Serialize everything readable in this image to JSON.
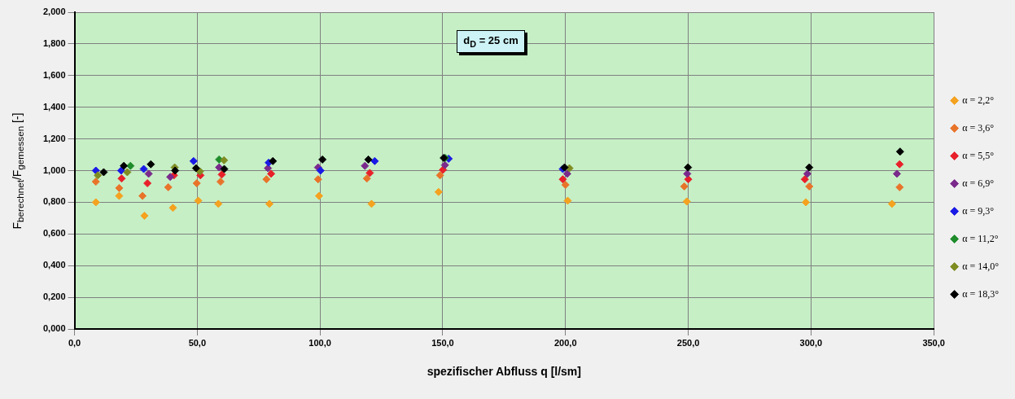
{
  "chart_data": {
    "type": "scatter",
    "xlabel": "spezifischer Abfluss q [l/sm]",
    "ylabel": "F$_{berechnet}$/F$_{gemessen}$ [-]",
    "annotations": [
      "d$_{D}$ = 25 cm"
    ],
    "xlim": [
      0,
      350
    ],
    "xticks": [
      {
        "value": 0,
        "label": "0,0"
      },
      {
        "value": 50,
        "label": "50,0"
      },
      {
        "value": 100,
        "label": "100,0"
      },
      {
        "value": 150,
        "label": "150,0"
      },
      {
        "value": 200,
        "label": "200,0"
      },
      {
        "value": 250,
        "label": "250,0"
      },
      {
        "value": 300,
        "label": "300,0"
      },
      {
        "value": 350,
        "label": "350,0"
      }
    ],
    "ylim": [
      0,
      2
    ],
    "yticks": [
      {
        "value": 0,
        "label": "0,000"
      },
      {
        "value": 0.2,
        "label": "0,200"
      },
      {
        "value": 0.4,
        "label": "0,400"
      },
      {
        "value": 0.6,
        "label": "0,600"
      },
      {
        "value": 0.8,
        "label": "0,800"
      },
      {
        "value": 1,
        "label": "1,000"
      },
      {
        "value": 1.2,
        "label": "1,200"
      },
      {
        "value": 1.4,
        "label": "1,400"
      },
      {
        "value": 1.6,
        "label": "1,600"
      },
      {
        "value": 1.8,
        "label": "1,800"
      },
      {
        "value": 2,
        "label": "2,000"
      }
    ],
    "grid": true,
    "legend": "right",
    "marker": "diamond",
    "series": [
      {
        "name": "α = 2,2°",
        "color": "#f4a21f",
        "x": [
          8.7,
          18.2,
          28.5,
          40.1,
          50.4,
          58.6,
          79.4,
          99.6,
          121,
          148.3,
          200.9,
          249.4,
          297.9,
          333
        ],
        "values": [
          0.8,
          0.84,
          0.715,
          0.765,
          0.81,
          0.79,
          0.79,
          0.84,
          0.79,
          0.865,
          0.81,
          0.805,
          0.8,
          0.79
        ]
      },
      {
        "name": "α = 3,6°",
        "color": "#e8742a",
        "x": [
          8.7,
          18.2,
          27.7,
          38.2,
          49.8,
          59.5,
          78.2,
          99.2,
          119.1,
          148.9,
          200,
          248.4,
          299.3,
          336.1
        ],
        "values": [
          0.93,
          0.89,
          0.84,
          0.895,
          0.92,
          0.93,
          0.945,
          0.945,
          0.95,
          0.97,
          0.91,
          0.9,
          0.9,
          0.895
        ]
      },
      {
        "name": "α = 5,5°",
        "color": "#e8202a",
        "x": [
          19.2,
          29.7,
          40.5,
          51.3,
          60,
          80.1,
          120.3,
          150.1,
          198.9,
          250,
          297.5,
          336.1
        ],
        "values": [
          0.95,
          0.92,
          0.97,
          0.97,
          0.975,
          0.98,
          0.985,
          1.005,
          0.945,
          0.945,
          0.945,
          1.04
        ]
      },
      {
        "name": "α = 6,9°",
        "color": "#7b2a8c",
        "x": [
          30.2,
          39,
          58.9,
          78.8,
          99.2,
          118.3,
          150.9,
          200.7,
          249.6,
          298.5,
          335
        ],
        "values": [
          0.98,
          0.96,
          1.02,
          1.015,
          1.02,
          1.03,
          1.035,
          0.98,
          0.98,
          0.98,
          0.98
        ]
      },
      {
        "name": "α = 9,3°",
        "color": "#1a1ae6",
        "x": [
          8.7,
          19,
          28.2,
          48.5,
          79.1,
          100.2,
          122.3,
          152.4,
          198.9
        ],
        "values": [
          1,
          1,
          1.01,
          1.06,
          1.05,
          1,
          1.06,
          1.075,
          1.01
        ]
      },
      {
        "name": "α = 11,2°",
        "color": "#1e8c2a",
        "x": [
          22.8,
          58.9,
          151
        ],
        "values": [
          1.03,
          1.07,
          1.08
        ]
      },
      {
        "name": "α = 14,0°",
        "color": "#7f8c22",
        "x": [
          9.5,
          21.5,
          40.8,
          51.1,
          60.9,
          201.6
        ],
        "values": [
          0.97,
          0.99,
          1.02,
          0.995,
          1.065,
          1.015
        ]
      },
      {
        "name": "α = 18,3°",
        "color": "#000000",
        "x": [
          11.9,
          20.1,
          31.1,
          41,
          49.5,
          61,
          80.8,
          101,
          119.7,
          150.4,
          199.6,
          249.9,
          299.3,
          336.3
        ],
        "values": [
          0.99,
          1.03,
          1.04,
          1,
          1.015,
          1.01,
          1.06,
          1.07,
          1.07,
          1.08,
          1.02,
          1.02,
          1.02,
          1.12
        ]
      }
    ]
  }
}
